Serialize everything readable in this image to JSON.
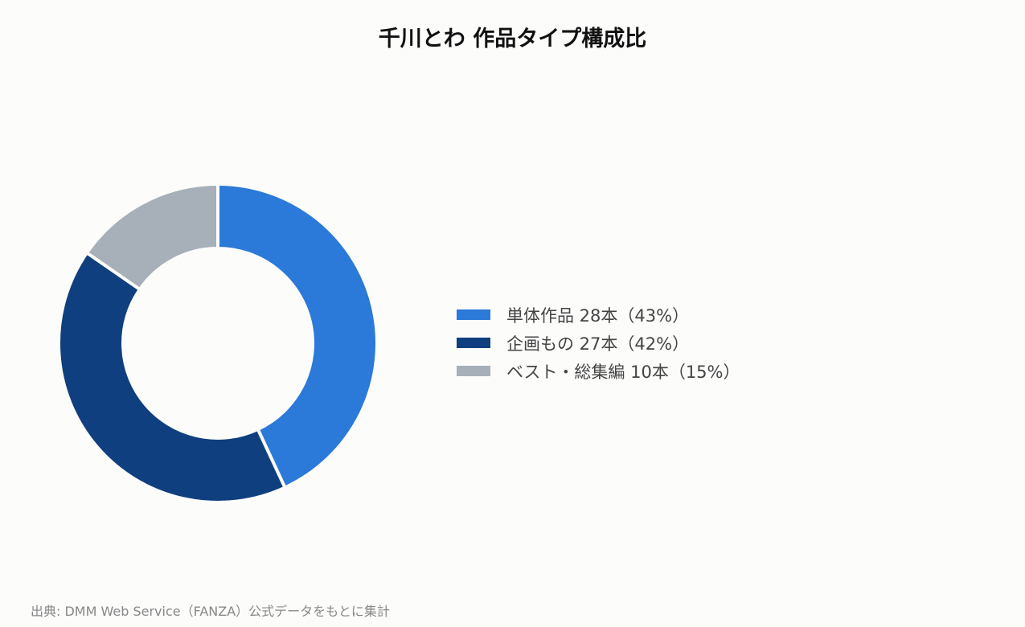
{
  "chart_data": {
    "type": "pie",
    "donut": true,
    "title": "千川とわ 作品タイプ構成比",
    "categories": [
      "単体作品",
      "企画もの",
      "ベスト・総集編"
    ],
    "values": [
      28,
      27,
      10
    ],
    "percentages": [
      43,
      42,
      15
    ],
    "labels": [
      "単体作品 28本（43%）",
      "企画もの 27本（42%）",
      "ベスト・総集編 10本（15%）"
    ],
    "colors": [
      "#2b79d8",
      "#0f3f7e",
      "#a7afb9"
    ],
    "legend_position": "right",
    "start_angle": "12 o'clock",
    "direction": "clockwise"
  },
  "source_note": "出典: DMM Web Service（FANZA）公式データをもとに集計"
}
